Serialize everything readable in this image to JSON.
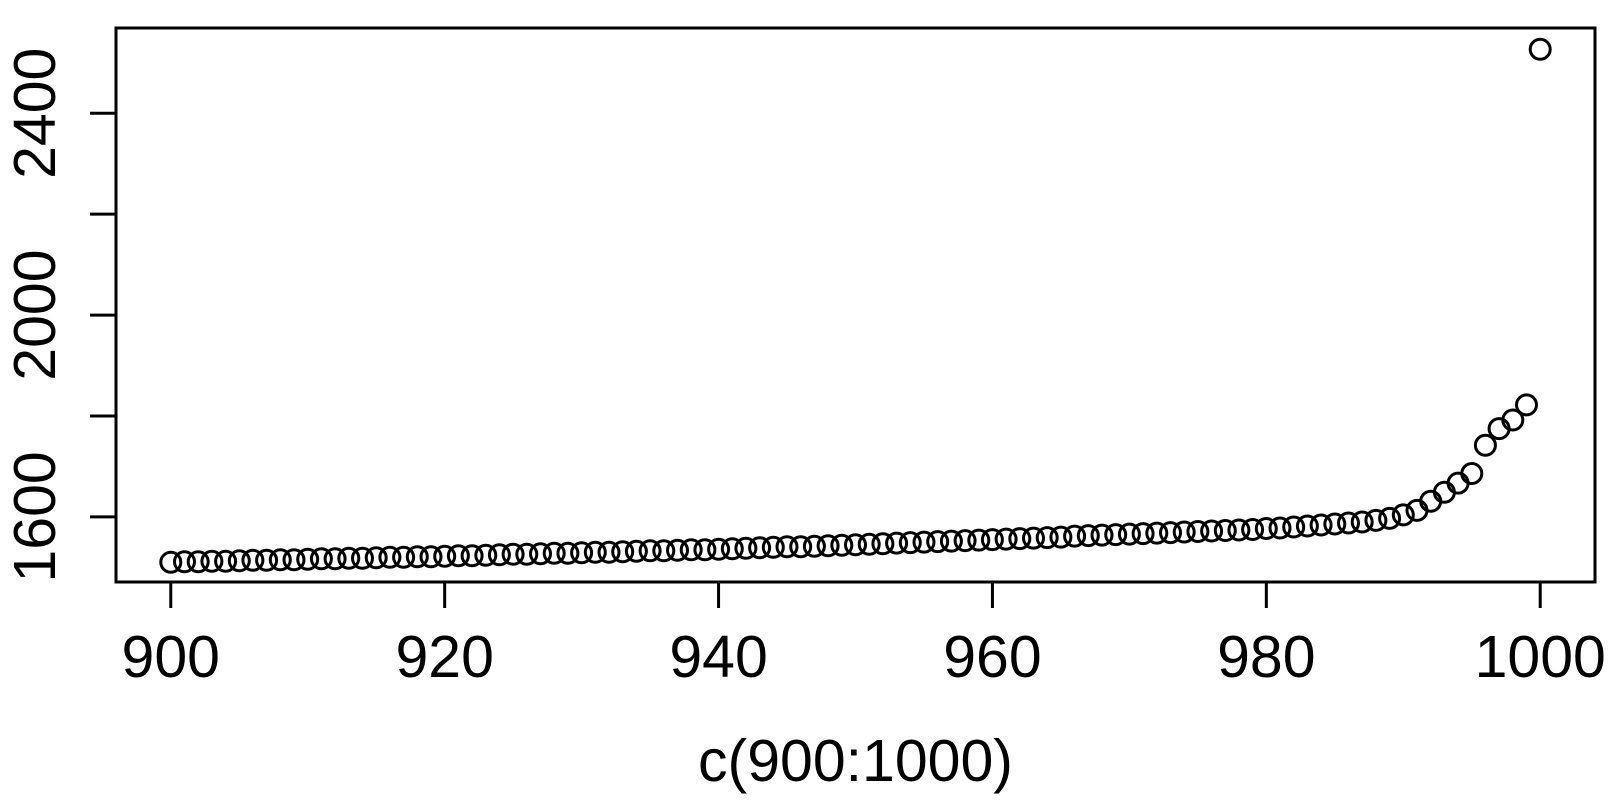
{
  "figure": {
    "background_color": "#ffffff",
    "foreground_color": "#000000"
  },
  "chart_data": {
    "type": "scatter",
    "title": "",
    "xlabel": "c(900:1000)",
    "ylabel": "",
    "marker": "open-circle",
    "marker_color": "#000000",
    "grid": false,
    "legend_position": "none",
    "x": {
      "from": 900,
      "to": 1000,
      "step": 1
    },
    "y": [
      1510,
      1511,
      1511,
      1512,
      1512,
      1513,
      1514,
      1514,
      1515,
      1515,
      1516,
      1517,
      1517,
      1518,
      1518,
      1519,
      1520,
      1520,
      1521,
      1521,
      1522,
      1523,
      1523,
      1524,
      1525,
      1526,
      1526,
      1527,
      1528,
      1528,
      1529,
      1530,
      1530,
      1531,
      1532,
      1533,
      1533,
      1534,
      1535,
      1535,
      1536,
      1537,
      1538,
      1539,
      1540,
      1541,
      1541,
      1542,
      1543,
      1544,
      1545,
      1546,
      1547,
      1548,
      1549,
      1550,
      1551,
      1552,
      1553,
      1554,
      1555,
      1556,
      1557,
      1558,
      1559,
      1560,
      1562,
      1563,
      1564,
      1565,
      1566,
      1567,
      1568,
      1569,
      1570,
      1571,
      1572,
      1573,
      1574,
      1575,
      1577,
      1578,
      1580,
      1582,
      1584,
      1586,
      1588,
      1590,
      1593,
      1597,
      1604,
      1613,
      1631,
      1649,
      1667,
      1686,
      1742,
      1775,
      1792,
      1822,
      2527
    ],
    "xlim": [
      896,
      1004
    ],
    "ylim": [
      1471,
      2569
    ],
    "x_ticks": [
      900,
      920,
      940,
      960,
      980,
      1000
    ],
    "x_tick_labels": [
      "900",
      "920",
      "940",
      "960",
      "980",
      "1000"
    ],
    "y_ticks": [
      1600,
      1800,
      2000,
      2200,
      2400
    ],
    "y_tick_labels": [
      "1600",
      "",
      "2000",
      "",
      "2400"
    ]
  }
}
